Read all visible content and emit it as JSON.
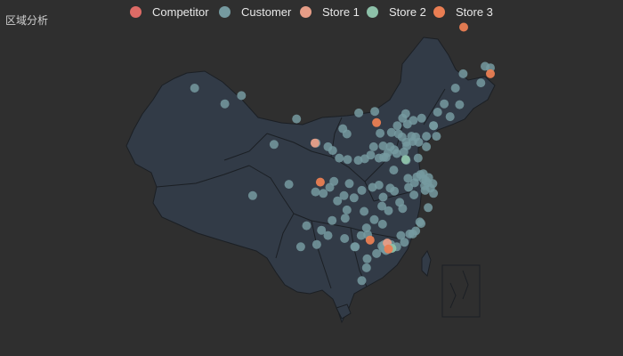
{
  "title": "区域分析",
  "colors": {
    "background": "#2f2f2f",
    "land": "#323b47",
    "border": "#1b1f24"
  },
  "legend": [
    {
      "name": "Competitor",
      "color": "#dd6b66"
    },
    {
      "name": "Customer",
      "color": "#759aa0"
    },
    {
      "name": "Store 1",
      "color": "#e69d87"
    },
    {
      "name": "Store 2",
      "color": "#8dc1a9"
    },
    {
      "name": "Store 3",
      "color": "#ea7e53"
    }
  ],
  "points": {
    "Customer": [
      [
        81.3,
        43.9
      ],
      [
        86.4,
        41.8
      ],
      [
        89.2,
        42.9
      ],
      [
        94.7,
        36.4
      ],
      [
        98.5,
        39.8
      ],
      [
        101.8,
        36.6
      ],
      [
        103.8,
        36.1
      ],
      [
        106.3,
        38.5
      ],
      [
        107.0,
        37.8
      ],
      [
        105.7,
        34.6
      ],
      [
        104.6,
        35.6
      ],
      [
        109.0,
        40.6
      ],
      [
        111.7,
        40.8
      ],
      [
        112.6,
        37.9
      ],
      [
        113.1,
        36.2
      ],
      [
        111.5,
        36.1
      ],
      [
        114.5,
        38.0
      ],
      [
        115.5,
        38.9
      ],
      [
        116.4,
        39.9
      ],
      [
        117.2,
        39.1
      ],
      [
        118.2,
        39.6
      ],
      [
        119.6,
        39.9
      ],
      [
        121.6,
        38.9
      ],
      [
        117.0,
        36.7
      ],
      [
        118.1,
        36.8
      ],
      [
        120.4,
        36.1
      ],
      [
        122.1,
        37.5
      ],
      [
        119.0,
        34.6
      ],
      [
        118.8,
        32.1
      ],
      [
        120.6,
        31.3
      ],
      [
        121.5,
        31.2
      ],
      [
        120.2,
        30.3
      ],
      [
        121.6,
        29.9
      ],
      [
        120.7,
        28.0
      ],
      [
        119.3,
        26.1
      ],
      [
        118.1,
        24.5
      ],
      [
        116.7,
        23.4
      ],
      [
        113.3,
        23.1
      ],
      [
        114.1,
        22.5
      ],
      [
        113.6,
        22.3
      ],
      [
        112.9,
        22.9
      ],
      [
        110.4,
        21.2
      ],
      [
        110.3,
        20.0
      ],
      [
        109.5,
        18.3
      ],
      [
        108.4,
        22.8
      ],
      [
        110.3,
        25.3
      ],
      [
        106.7,
        26.6
      ],
      [
        102.7,
        25.0
      ],
      [
        100.2,
        25.6
      ],
      [
        99.2,
        22.8
      ],
      [
        101.9,
        23.1
      ],
      [
        104.1,
        30.7
      ],
      [
        106.5,
        29.6
      ],
      [
        108.9,
        34.3
      ],
      [
        113.6,
        34.7
      ],
      [
        114.3,
        30.6
      ],
      [
        112.9,
        28.2
      ],
      [
        115.9,
        28.7
      ],
      [
        117.3,
        31.9
      ],
      [
        117.0,
        34.3
      ],
      [
        116.6,
        35.4
      ],
      [
        114.9,
        33.0
      ],
      [
        112.4,
        31.0
      ],
      [
        111.3,
        30.7
      ],
      [
        109.5,
        30.3
      ],
      [
        108.2,
        29.3
      ],
      [
        105.4,
        28.9
      ],
      [
        107.4,
        31.2
      ],
      [
        104.8,
        31.5
      ],
      [
        103.0,
        29.9
      ],
      [
        101.7,
        30.1
      ],
      [
        91.1,
        29.6
      ],
      [
        97.2,
        31.1
      ],
      [
        123.4,
        41.8
      ],
      [
        122.3,
        40.7
      ],
      [
        121.6,
        38.9
      ],
      [
        125.3,
        43.9
      ],
      [
        126.6,
        45.8
      ],
      [
        129.6,
        44.6
      ],
      [
        130.3,
        46.8
      ],
      [
        131.2,
        46.6
      ],
      [
        124.4,
        40.1
      ],
      [
        126.0,
        41.7
      ],
      [
        116.9,
        40.5
      ],
      [
        118.6,
        37.4
      ],
      [
        120.4,
        37.5
      ],
      [
        117.1,
        36.2
      ],
      [
        115.4,
        35.2
      ],
      [
        114.3,
        36.1
      ],
      [
        113.2,
        34.7
      ],
      [
        112.4,
        34.6
      ],
      [
        110.0,
        34.5
      ],
      [
        107.1,
        34.4
      ],
      [
        111.0,
        35.0
      ],
      [
        113.9,
        35.3
      ],
      [
        115.0,
        35.7
      ],
      [
        116.3,
        37.4
      ],
      [
        115.7,
        37.8
      ],
      [
        117.9,
        37.5
      ],
      [
        119.1,
        36.7
      ],
      [
        120.8,
        32.0
      ],
      [
        119.9,
        32.5
      ],
      [
        119.4,
        32.4
      ],
      [
        120.3,
        31.6
      ],
      [
        119.9,
        31.8
      ],
      [
        118.4,
        31.3
      ],
      [
        117.4,
        30.7
      ],
      [
        115.0,
        30.2
      ],
      [
        114.0,
        27.6
      ],
      [
        113.1,
        29.4
      ],
      [
        113.0,
        25.8
      ],
      [
        111.6,
        26.4
      ],
      [
        109.9,
        27.5
      ],
      [
        110.5,
        24.4
      ],
      [
        109.4,
        24.3
      ],
      [
        108.3,
        22.8
      ],
      [
        106.6,
        23.9
      ],
      [
        103.8,
        24.3
      ],
      [
        104.5,
        26.3
      ],
      [
        107.0,
        27.7
      ],
      [
        116.1,
        24.3
      ],
      [
        115.4,
        22.8
      ],
      [
        112.0,
        21.9
      ],
      [
        113.1,
        22.6
      ],
      [
        113.4,
        22.5
      ],
      [
        114.4,
        23.1
      ],
      [
        117.6,
        24.5
      ],
      [
        118.6,
        24.9
      ],
      [
        119.5,
        25.9
      ],
      [
        121.1,
        30.6
      ],
      [
        120.1,
        30.9
      ],
      [
        118.3,
        29.7
      ],
      [
        116.4,
        27.9
      ],
      [
        113.9,
        22.6
      ]
    ],
    "Store 1": [
      [
        113.8,
        23.3
      ],
      [
        101.6,
        36.6
      ]
    ],
    "Store 2": [
      [
        116.9,
        34.4
      ],
      [
        114.6,
        22.6
      ]
    ],
    "Store 3": [
      [
        126.7,
        52.0
      ],
      [
        112.0,
        39.3
      ],
      [
        102.5,
        31.4
      ],
      [
        110.9,
        23.7
      ],
      [
        114.0,
        22.5
      ],
      [
        131.2,
        45.8
      ]
    ],
    "Competitor": []
  }
}
